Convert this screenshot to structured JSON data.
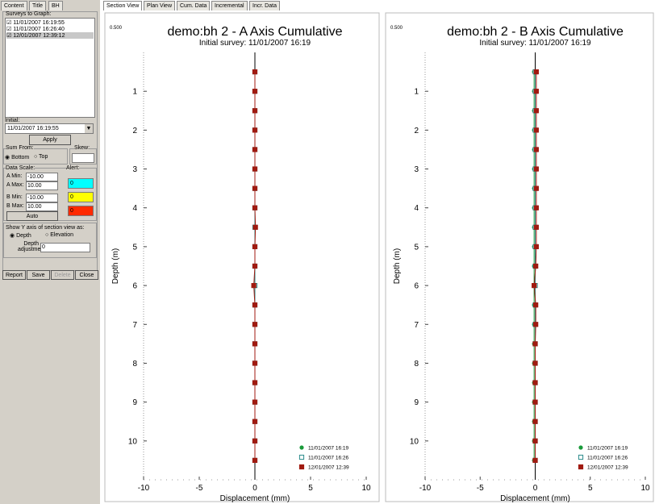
{
  "panel": {
    "tabs": [
      "Content",
      "Title",
      "BH"
    ],
    "surveys_label": "Surveys to Graph:",
    "surveys": [
      "11/01/2007 16:19:55",
      "11/01/2007 16:26:40",
      "12/01/2007 12:39:12"
    ],
    "initial_label": "Initial:",
    "initial_value": "11/01/2007 16:19:55",
    "apply": "Apply",
    "sum_from_label": "Sum From:",
    "sum_from_options": [
      "Bottom",
      "Top"
    ],
    "skew_label": "Skew:",
    "data_scale_label": "Data Scale:",
    "scale_fields": [
      {
        "label": "A Min:",
        "value": "-10.00"
      },
      {
        "label": "A Max:",
        "value": "10.00"
      },
      {
        "label": "B Min:",
        "value": "-10.00"
      },
      {
        "label": "B Max:",
        "value": "10.00"
      }
    ],
    "auto": "Auto",
    "alert_label": "Alert:",
    "alerts": [
      {
        "value": "0",
        "color": "#00ffff"
      },
      {
        "value": "0",
        "color": "#ffff00"
      },
      {
        "value": "0",
        "color": "#ff2a00"
      }
    ],
    "y_axis_label": "Show Y axis of section view as:",
    "y_axis_options": [
      "Depth",
      "Elevation"
    ],
    "depth_adjustment_label": "Depth adjustment:",
    "depth_adjustment_value": "0",
    "buttons": [
      "Report",
      "Save",
      "Delete",
      "Close"
    ]
  },
  "view_tabs": [
    "Section View",
    "Plan View",
    "Cum. Data",
    "Incremental",
    "Incr. Data"
  ],
  "chart_data": [
    {
      "type": "line",
      "title": "demo:bh 2 - A Axis Cumulative",
      "subtitle": "Initial survey: 11/01/2007 16:19",
      "corner_label": "0.500",
      "xlabel": "Displacement (mm)",
      "ylabel": "Depth (m)",
      "y": [
        0.5,
        1,
        1.5,
        2,
        2.5,
        3,
        3.5,
        4,
        4.5,
        5,
        5.5,
        6,
        6.5,
        7,
        7.5,
        8,
        8.5,
        9,
        9.5,
        10,
        10.5
      ],
      "series": [
        {
          "name": "11/01/2007 16:19",
          "color": "#1a9a3a",
          "marker": "circle",
          "values": [
            0,
            0,
            0,
            0,
            0,
            0,
            0,
            0,
            0,
            0,
            0,
            0,
            0,
            0,
            0,
            0,
            0,
            0,
            0,
            0,
            0
          ]
        },
        {
          "name": "11/01/2007 16:26",
          "color": "#2a8a8a",
          "marker": "open-square",
          "values": [
            0,
            0,
            0,
            0,
            0,
            0,
            0,
            0,
            0,
            0,
            0,
            0,
            0,
            0,
            0,
            0,
            0,
            0,
            0,
            0,
            0
          ]
        },
        {
          "name": "12/01/2007 12:39",
          "color": "#a01a10",
          "marker": "square",
          "values": [
            0,
            0,
            0,
            0,
            0,
            0,
            0,
            0,
            0.05,
            0,
            0,
            -0.1,
            0,
            0,
            0,
            0,
            0,
            0,
            0,
            0,
            0
          ]
        }
      ],
      "xlim": [
        -10,
        10
      ],
      "xticks": [
        -10,
        -5,
        0,
        5,
        10
      ],
      "ylim": [
        0,
        11
      ],
      "yticks": [
        1,
        2,
        3,
        4,
        5,
        6,
        7,
        8,
        9,
        10
      ],
      "y_inverted": true,
      "legend": "lower right"
    },
    {
      "type": "line",
      "title": "demo:bh 2 - B Axis Cumulative",
      "subtitle": "Initial survey: 11/01/2007 16:19",
      "corner_label": "0.500",
      "xlabel": "Displacement (mm)",
      "ylabel": "Depth (m)",
      "y": [
        0.5,
        1,
        1.5,
        2,
        2.5,
        3,
        3.5,
        4,
        4.5,
        5,
        5.5,
        6,
        6.5,
        7,
        7.5,
        8,
        8.5,
        9,
        9.5,
        10,
        10.5
      ],
      "series": [
        {
          "name": "11/01/2007 16:19",
          "color": "#1a9a3a",
          "marker": "circle",
          "values": [
            -0.1,
            -0.1,
            -0.1,
            -0.1,
            -0.1,
            -0.1,
            -0.1,
            -0.1,
            -0.1,
            -0.1,
            -0.1,
            -0.1,
            -0.1,
            -0.1,
            -0.1,
            -0.1,
            -0.1,
            -0.1,
            -0.1,
            -0.1,
            -0.1
          ]
        },
        {
          "name": "11/01/2007 16:26",
          "color": "#2a8a8a",
          "marker": "open-square",
          "values": [
            0,
            0,
            0,
            0,
            0,
            0,
            0,
            0,
            0,
            0,
            0,
            0,
            0,
            0,
            0,
            0,
            0,
            0,
            0,
            0,
            0
          ]
        },
        {
          "name": "12/01/2007 12:39",
          "color": "#a01a10",
          "marker": "square",
          "values": [
            0.1,
            0.1,
            0.1,
            0.1,
            0.1,
            0.1,
            0.1,
            0.1,
            0.1,
            0.1,
            0.05,
            -0.1,
            0.05,
            0.05,
            0,
            0,
            0,
            0,
            0,
            0,
            0
          ]
        }
      ],
      "xlim": [
        -10,
        10
      ],
      "xticks": [
        -10,
        -5,
        0,
        5,
        10
      ],
      "ylim": [
        0,
        11
      ],
      "yticks": [
        1,
        2,
        3,
        4,
        5,
        6,
        7,
        8,
        9,
        10
      ],
      "y_inverted": true,
      "legend": "lower right"
    }
  ]
}
